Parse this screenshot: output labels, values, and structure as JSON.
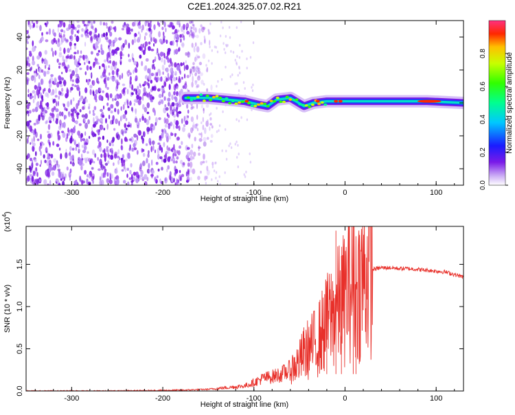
{
  "title": "C2E1.2024.325.07.02.R21",
  "colorbar": {
    "label": "Normalized spectral amplitude",
    "ticks": [
      "0.0",
      "0.2",
      "0.4",
      "0.6",
      "0.8"
    ],
    "tick_values": [
      0.0,
      0.2,
      0.4,
      0.6,
      0.8
    ],
    "range": [
      0,
      1
    ]
  },
  "chart_data": [
    {
      "type": "heatmap",
      "xlabel": "Height of straight line (km)",
      "ylabel": "Frequency (Hz)",
      "xlim": [
        -350,
        130
      ],
      "ylim": [
        -50,
        50
      ],
      "xticks": [
        -300,
        -200,
        -100,
        0,
        100
      ],
      "yticks": [
        -40,
        -20,
        0,
        20,
        40
      ],
      "xtick_labels": [
        "-300",
        "-200",
        "-100",
        "0",
        "100"
      ],
      "ytick_labels": [
        "-40",
        "-20",
        "0",
        "20",
        "40"
      ],
      "colormap": "rainbow (purple low to red high)",
      "noise_region_x": [
        -350,
        -160
      ],
      "signal_band": [
        {
          "x": -175,
          "f": 3
        },
        {
          "x": -150,
          "f": 3
        },
        {
          "x": -130,
          "f": 2
        },
        {
          "x": -110,
          "f": 1
        },
        {
          "x": -95,
          "f": -1
        },
        {
          "x": -85,
          "f": -2
        },
        {
          "x": -75,
          "f": 2
        },
        {
          "x": -60,
          "f": 3
        },
        {
          "x": -45,
          "f": -2
        },
        {
          "x": -35,
          "f": 0
        },
        {
          "x": -20,
          "f": 1
        },
        {
          "x": 0,
          "f": 1
        },
        {
          "x": 50,
          "f": 1
        },
        {
          "x": 90,
          "f": 1
        },
        {
          "x": 130,
          "f": 0
        }
      ]
    },
    {
      "type": "line",
      "xlabel": "Height of straight line (km)",
      "ylabel": "SNR (10 * v/v)",
      "multiplier": "(x10",
      "multiplier_exp": "4",
      "multiplier_close": ")",
      "xlim": [
        -350,
        130
      ],
      "ylim": [
        0,
        1.95
      ],
      "xticks": [
        -300,
        -200,
        -100,
        0,
        100
      ],
      "yticks": [
        0.0,
        0.5,
        1.0,
        1.5
      ],
      "xtick_labels": [
        "-300",
        "-200",
        "-100",
        "0",
        "100"
      ],
      "ytick_labels": [
        "0.0",
        "0.5",
        "1.0",
        "1.5"
      ],
      "series": [
        {
          "color": "#e8302a",
          "x": [
            -350,
            -250,
            -180,
            -150,
            -130,
            -110,
            -100,
            -90,
            -80,
            -70,
            -60,
            -50,
            -45,
            -40,
            -35,
            -30,
            -25,
            -20,
            -15,
            -10,
            -5,
            0,
            5,
            10,
            15,
            20,
            25,
            30,
            40,
            50,
            60,
            70,
            80,
            90,
            100,
            110,
            120,
            130
          ],
          "y": [
            0.0,
            0.0,
            0.01,
            0.02,
            0.04,
            0.06,
            0.1,
            0.15,
            0.17,
            0.2,
            0.25,
            0.35,
            0.45,
            0.5,
            0.55,
            0.6,
            0.7,
            0.8,
            0.9,
            0.95,
            1.05,
            1.1,
            1.3,
            1.2,
            1.25,
            1.35,
            1.42,
            1.44,
            1.46,
            1.46,
            1.45,
            1.45,
            1.44,
            1.43,
            1.42,
            1.41,
            1.38,
            1.35
          ],
          "spikes": [
            {
              "x": -10,
              "y": 1.9
            },
            {
              "x": 9,
              "y": 1.95
            },
            {
              "x": -4,
              "y": 1.6
            },
            {
              "x": 12,
              "y": 1.5
            },
            {
              "x": -20,
              "y": 1.3
            }
          ]
        }
      ]
    }
  ]
}
